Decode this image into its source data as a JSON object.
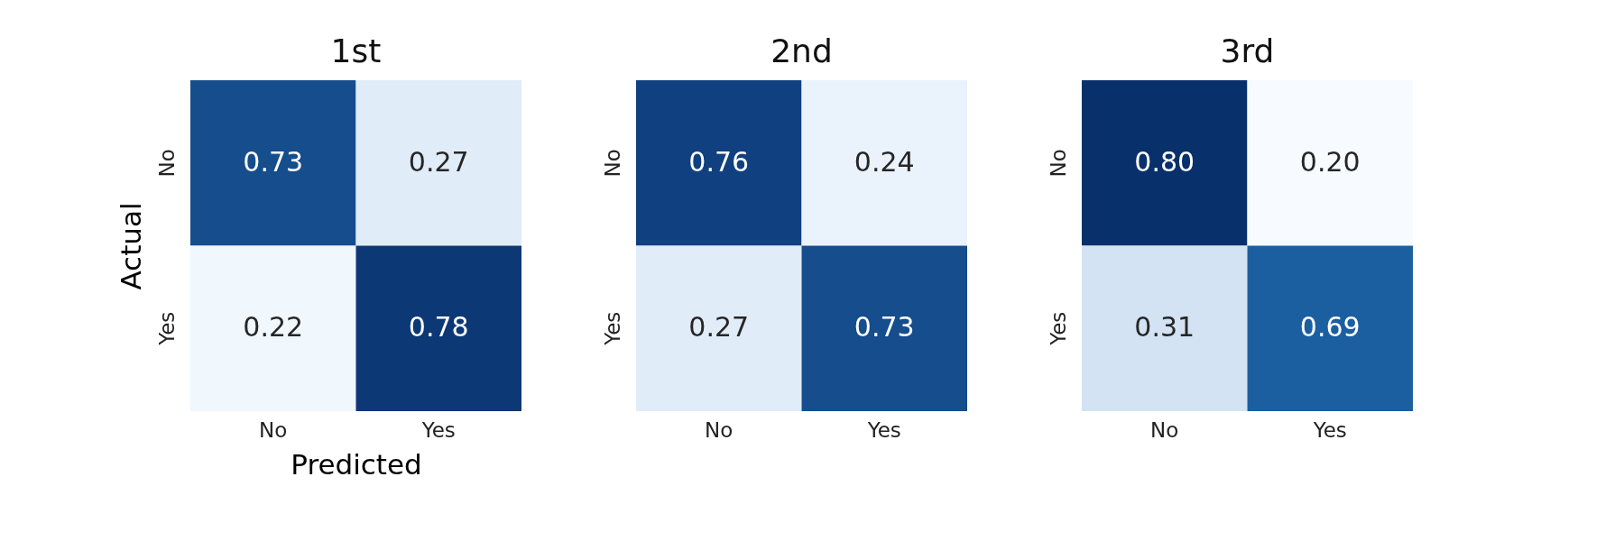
{
  "chart_data": [
    {
      "type": "heatmap",
      "title": "1st",
      "xlabel": "Predicted",
      "ylabel": "Actual",
      "categories": [
        "No",
        "Yes"
      ],
      "y_categories": [
        "No",
        "Yes"
      ],
      "cells": [
        [
          0.73,
          0.27
        ],
        [
          0.22,
          0.78
        ]
      ],
      "data_labels": true
    },
    {
      "type": "heatmap",
      "title": "2nd",
      "categories": [
        "No",
        "Yes"
      ],
      "y_categories": [
        "No",
        "Yes"
      ],
      "cells": [
        [
          0.76,
          0.24
        ],
        [
          0.27,
          0.73
        ]
      ],
      "data_labels": true
    },
    {
      "type": "heatmap",
      "title": "3rd",
      "categories": [
        "No",
        "Yes"
      ],
      "y_categories": [
        "No",
        "Yes"
      ],
      "cells": [
        [
          0.8,
          0.2
        ],
        [
          0.31,
          0.69
        ]
      ],
      "cell_labels": [
        [
          "0.80",
          "0.20"
        ],
        [
          "0.31",
          "0.69"
        ]
      ],
      "data_labels": true
    }
  ]
}
